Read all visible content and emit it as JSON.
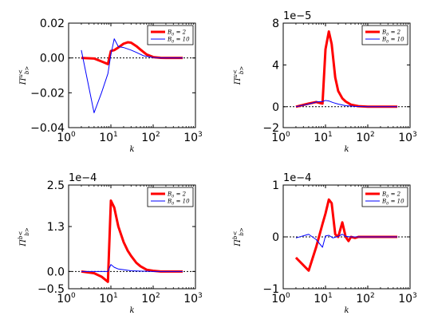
{
  "chart_data": [
    {
      "type": "line",
      "ylabel": "Π_{b>}^{u<}",
      "xlabel": "k",
      "xscale": "log",
      "xlim": [
        1,
        1000
      ],
      "xticks": [
        1,
        10,
        100,
        1000
      ],
      "xtick_labels": [
        {
          "base": "10",
          "exp": "0"
        },
        {
          "base": "10",
          "exp": "1"
        },
        {
          "base": "10",
          "exp": "2"
        },
        {
          "base": "10",
          "exp": "3"
        }
      ],
      "ylim": [
        -0.04,
        0.02
      ],
      "yticks": [
        -0.04,
        -0.02,
        0.0,
        0.02
      ],
      "ytick_labels": [
        "−0.04",
        "−0.02",
        "0.00",
        "0.02"
      ],
      "offset_label": "",
      "legend_loc": "upper right",
      "zero_line": true,
      "series": [
        {
          "name": "B_0 = 2",
          "color": "#ff0000",
          "width": 3,
          "x": [
            2,
            4,
            6,
            8.5,
            10,
            12,
            15,
            20,
            25,
            30,
            40,
            50,
            70,
            100,
            150,
            200,
            300,
            500
          ],
          "y": [
            0.0,
            -0.0003,
            -0.002,
            -0.0035,
            0.004,
            0.0045,
            0.006,
            0.0082,
            0.009,
            0.0088,
            0.0068,
            0.0048,
            0.002,
            0.0005,
            0.0001,
            0.0,
            0.0,
            0.0
          ]
        },
        {
          "name": "B_0 = 10",
          "color": "#0000ff",
          "width": 1,
          "x": [
            2,
            4,
            6,
            8.5,
            10,
            12,
            15,
            20,
            30,
            40,
            60,
            100,
            150,
            200,
            300,
            500
          ],
          "y": [
            0.0045,
            -0.0315,
            -0.02,
            -0.009,
            0.002,
            0.011,
            0.0065,
            0.006,
            0.0045,
            0.0032,
            0.0012,
            0.0003,
            0.0,
            0.0,
            0.0,
            0.0
          ]
        }
      ]
    },
    {
      "type": "line",
      "ylabel": "Π_{b>}^{u<}",
      "xlabel": "k",
      "xscale": "log",
      "xlim": [
        1,
        1000
      ],
      "xticks": [
        1,
        10,
        100,
        1000
      ],
      "xtick_labels": [
        {
          "base": "10",
          "exp": "0"
        },
        {
          "base": "10",
          "exp": "1"
        },
        {
          "base": "10",
          "exp": "2"
        },
        {
          "base": "10",
          "exp": "3"
        }
      ],
      "ylim": [
        -2,
        8
      ],
      "yticks": [
        -2,
        0,
        4,
        8
      ],
      "ytick_labels": [
        "−2",
        "0",
        "4",
        "8"
      ],
      "offset_label": "1e−5",
      "legend_loc": "upper right",
      "zero_line": true,
      "series": [
        {
          "name": "B_0 = 2",
          "color": "#ff0000",
          "width": 3,
          "x": [
            2,
            4,
            6,
            8.5,
            10,
            12,
            14,
            17,
            20,
            25,
            30,
            40,
            60,
            100,
            200,
            500
          ],
          "y": [
            0.0,
            0.3,
            0.45,
            0.3,
            5.5,
            7.2,
            6.0,
            2.8,
            1.5,
            0.8,
            0.5,
            0.2,
            0.05,
            0.0,
            0.0,
            0.0
          ]
        },
        {
          "name": "B_0 = 10",
          "color": "#0000ff",
          "width": 1,
          "x": [
            2,
            4,
            6,
            8.5,
            10,
            12,
            15,
            20,
            30,
            50,
            100,
            200,
            500
          ],
          "y": [
            0.0,
            0.25,
            0.45,
            0.5,
            0.6,
            0.55,
            0.4,
            0.25,
            0.1,
            0.03,
            0.0,
            0.0,
            0.0
          ]
        }
      ]
    },
    {
      "type": "line",
      "ylabel": "Π_{b>}^{b<}",
      "xlabel": "k",
      "xscale": "log",
      "xlim": [
        1,
        1000
      ],
      "xticks": [
        1,
        10,
        100,
        1000
      ],
      "xtick_labels": [
        {
          "base": "10",
          "exp": "0"
        },
        {
          "base": "10",
          "exp": "1"
        },
        {
          "base": "10",
          "exp": "2"
        },
        {
          "base": "10",
          "exp": "3"
        }
      ],
      "ylim": [
        -0.5,
        2.5
      ],
      "yticks": [
        -0.5,
        0.0,
        1.3,
        2.5
      ],
      "ytick_labels": [
        "−0.5",
        "0.0",
        "1.3",
        "2.5"
      ],
      "offset_label": "1e−4",
      "legend_loc": "upper right",
      "zero_line": true,
      "series": [
        {
          "name": "B_0 = 2",
          "color": "#ff0000",
          "width": 3,
          "x": [
            2,
            4,
            6,
            8.5,
            10,
            12,
            15,
            20,
            25,
            30,
            40,
            50,
            70,
            100,
            150,
            200,
            300,
            500
          ],
          "y": [
            0.0,
            -0.05,
            -0.15,
            -0.3,
            2.05,
            1.85,
            1.3,
            0.85,
            0.6,
            0.45,
            0.25,
            0.15,
            0.05,
            0.02,
            0.0,
            0.0,
            0.0,
            0.0
          ]
        },
        {
          "name": "B_0 = 10",
          "color": "#0000ff",
          "width": 1,
          "x": [
            2,
            4,
            6,
            8.5,
            10,
            12,
            15,
            20,
            30,
            50,
            100,
            200,
            500
          ],
          "y": [
            0.0,
            0.0,
            0.0,
            0.0,
            0.2,
            0.12,
            0.07,
            0.05,
            0.02,
            0.01,
            0.0,
            0.0,
            0.0
          ]
        }
      ]
    },
    {
      "type": "line",
      "ylabel": "Π_{b>}^{b<}",
      "xlabel": "k",
      "xscale": "log",
      "xlim": [
        1,
        1000
      ],
      "xticks": [
        1,
        10,
        100,
        1000
      ],
      "xtick_labels": [
        {
          "base": "10",
          "exp": "0"
        },
        {
          "base": "10",
          "exp": "1"
        },
        {
          "base": "10",
          "exp": "2"
        },
        {
          "base": "10",
          "exp": "3"
        }
      ],
      "ylim": [
        -1,
        1
      ],
      "yticks": [
        -1,
        0,
        1
      ],
      "ytick_labels": [
        "−1",
        "0",
        "1"
      ],
      "offset_label": "1e−4",
      "legend_loc": "upper right",
      "zero_line": true,
      "series": [
        {
          "name": "B_0 = 2",
          "color": "#ff0000",
          "width": 3,
          "x": [
            2,
            4,
            6,
            8.5,
            10,
            12,
            14,
            17,
            20,
            25,
            30,
            35,
            40,
            50,
            60,
            80,
            100,
            200,
            500
          ],
          "y": [
            -0.4,
            -0.65,
            -0.2,
            0.25,
            0.45,
            0.72,
            0.65,
            0.05,
            0.0,
            0.28,
            0.0,
            -0.08,
            0.0,
            -0.02,
            0.0,
            0.0,
            0.0,
            0.0,
            0.0
          ]
        },
        {
          "name": "B_0 = 10",
          "color": "#0000ff",
          "width": 1,
          "x": [
            2,
            4,
            6,
            8.5,
            10,
            12,
            15,
            20,
            25,
            30,
            40,
            50,
            70,
            100,
            200,
            500
          ],
          "y": [
            -0.02,
            0.05,
            -0.05,
            -0.2,
            0.02,
            0.03,
            -0.02,
            0.01,
            0.05,
            0.01,
            0.0,
            0.0,
            0.0,
            0.0,
            0.0,
            0.0
          ]
        }
      ]
    }
  ]
}
